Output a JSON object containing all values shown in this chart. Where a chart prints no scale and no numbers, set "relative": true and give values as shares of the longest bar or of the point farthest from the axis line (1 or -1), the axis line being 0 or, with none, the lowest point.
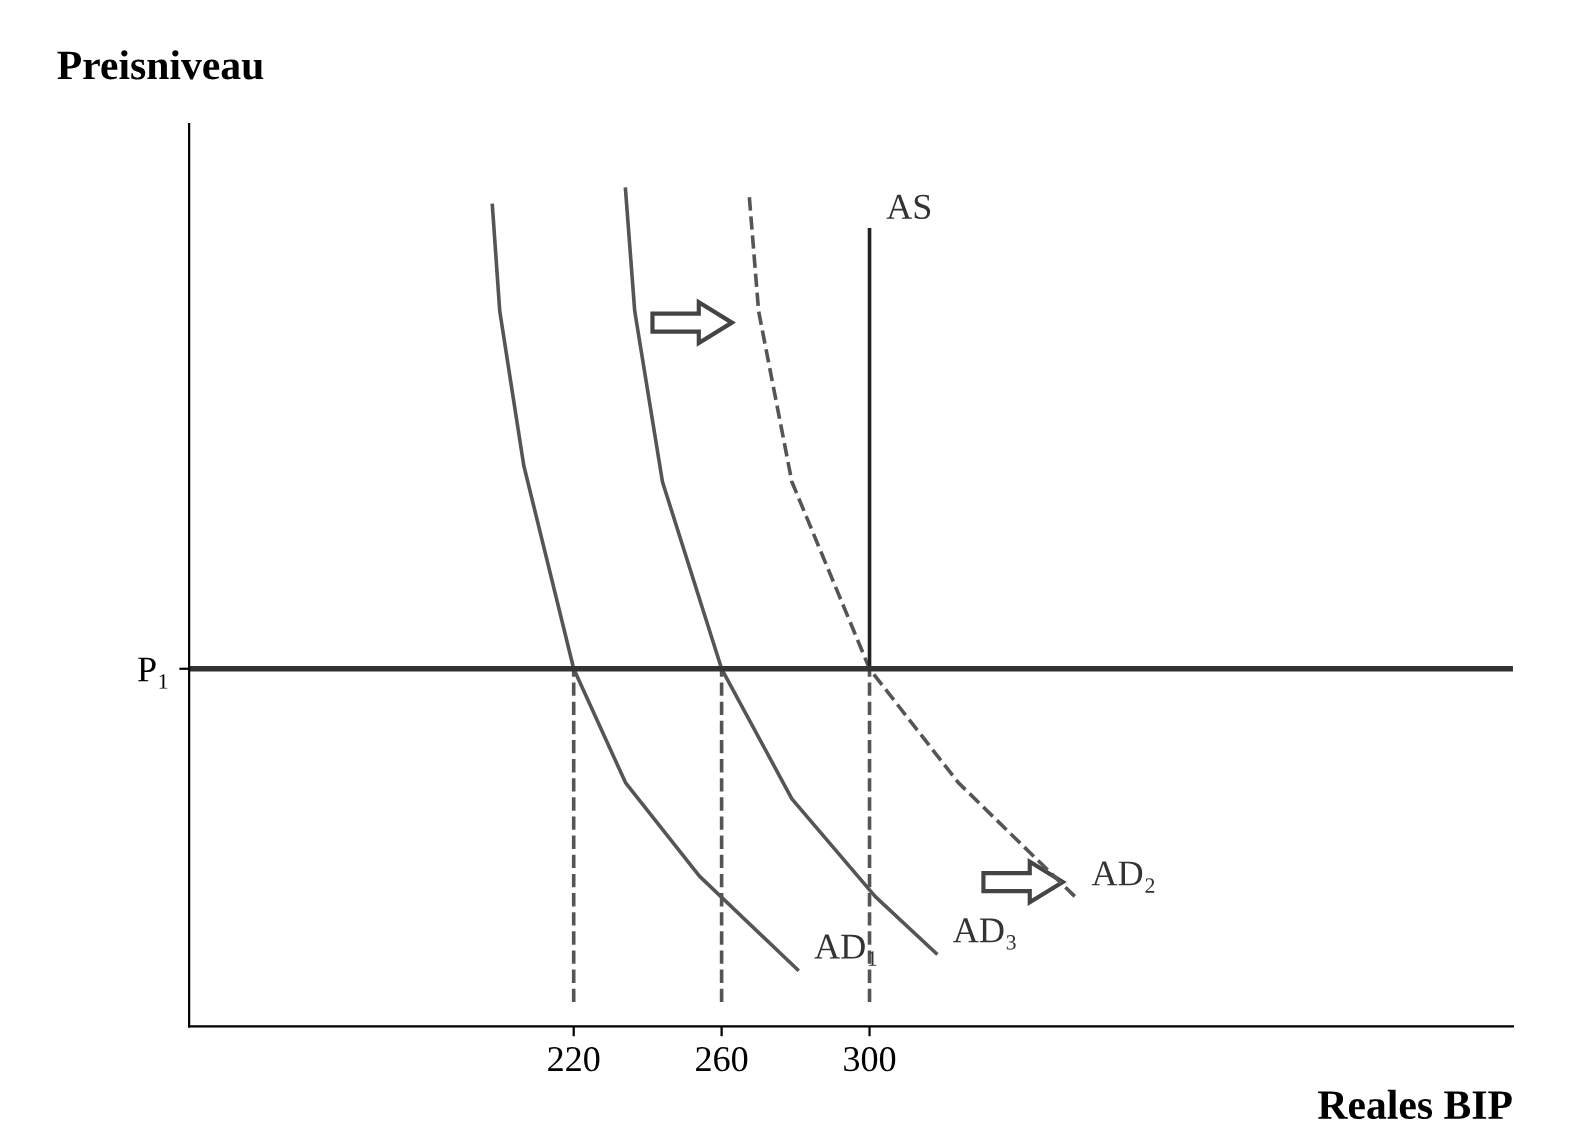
{
  "chart_data": {
    "type": "line",
    "relative": true,
    "xlabel": "Reales BIP",
    "ylabel": "Preisniveau",
    "xlim": [
      116,
      474
    ],
    "xticks": [
      220,
      260,
      300
    ],
    "tick_labels": "x",
    "grid": false,
    "marker": "none",
    "series": [
      {
        "name": "AD₁",
        "color": "#555555",
        "line_style": "solid",
        "x": [
          198,
          200,
          206.5,
          220,
          234,
          254,
          280.5
        ],
        "values": [
          0.98,
          0.85,
          0.66,
          0.41,
          0.27,
          0.155,
          0.04
        ]
      },
      {
        "name": "AD₃",
        "color": "#555555",
        "line_style": "solid",
        "x": [
          234,
          236.5,
          244,
          260,
          279,
          301.5,
          318
        ],
        "values": [
          1.0,
          0.85,
          0.64,
          0.41,
          0.25,
          0.13,
          0.06
        ]
      },
      {
        "name": "AD₂",
        "color": "#555555",
        "line_style": "dashed",
        "x": [
          267.5,
          270,
          279,
          300,
          324,
          355.5
        ],
        "values": [
          0.99,
          0.85,
          0.64,
          0.41,
          0.27,
          0.13
        ]
      },
      {
        "name": "AS",
        "color": "#222222",
        "line_style": "solid",
        "x": [
          300,
          300
        ],
        "values": [
          0.41,
          0.95
        ]
      },
      {
        "color": "#555555",
        "line_style": "dashed",
        "x": [
          220,
          220
        ],
        "values": [
          0,
          0.41
        ]
      },
      {
        "color": "#555555",
        "line_style": "dashed",
        "x": [
          260,
          260
        ],
        "values": [
          0,
          0.41
        ]
      },
      {
        "color": "#555555",
        "line_style": "dashed",
        "x": [
          300,
          300
        ],
        "values": [
          0,
          0.41
        ]
      }
    ],
    "ref_lines": [
      {
        "axis": "y",
        "value": 0.41,
        "label": "P₁",
        "color": "#333333",
        "line_style": "solid"
      }
    ]
  }
}
